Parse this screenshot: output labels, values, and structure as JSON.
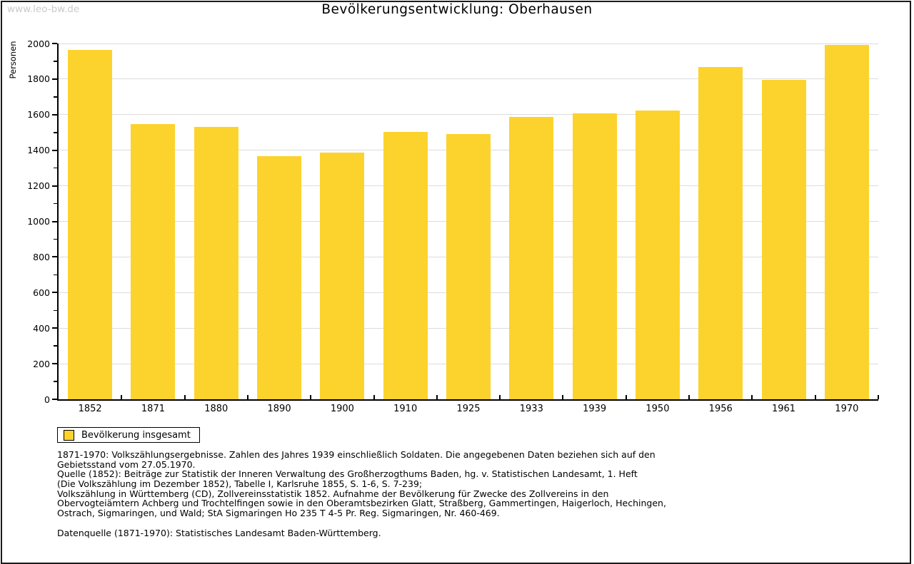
{
  "page": {
    "watermark": "www.leo-bw.de",
    "title": "Bevölkerungsentwicklung: Oberhausen"
  },
  "chart_data": {
    "type": "bar",
    "title": "Bevölkerungsentwicklung: Oberhausen",
    "xlabel": "",
    "ylabel": "Personen",
    "categories": [
      "1852",
      "1871",
      "1880",
      "1890",
      "1900",
      "1910",
      "1925",
      "1933",
      "1939",
      "1950",
      "1956",
      "1961",
      "1970"
    ],
    "series": [
      {
        "name": "Bevölkerung insgesamt",
        "values": [
          1962,
          1548,
          1530,
          1367,
          1387,
          1502,
          1489,
          1586,
          1606,
          1623,
          1868,
          1794,
          1993
        ]
      }
    ],
    "ylim": [
      0,
      2000
    ],
    "y_major_step": 200,
    "y_minor_step": 100,
    "grid": true,
    "legend_position": "bottom-left"
  },
  "legend": {
    "label": "Bevölkerung insgesamt"
  },
  "footer": {
    "notes": [
      "1871-1970: Volkszählungsergebnisse. Zahlen des Jahres 1939 einschließlich Soldaten. Die angegebenen Daten beziehen sich auf den",
      "Gebietsstand vom 27.05.1970.",
      "Quelle (1852): Beiträge zur Statistik der Inneren Verwaltung des Großherzogthums Baden, hg. v. Statistischen Landesamt, 1. Heft",
      "(Die Volkszählung im Dezember 1852), Tabelle I, Karlsruhe 1855, S. 1-6, S. 7-239;",
      "Volkszählung in Württemberg (CD), Zollvereinsstatistik 1852. Aufnahme der Bevölkerung für Zwecke des Zollvereins in den",
      "Obervogteiämtern Achberg und Trochtelfingen sowie in den Oberamtsbezirken Glatt, Straßberg, Gammertingen, Haigerloch, Hechingen,",
      "Ostrach, Sigmaringen, und Wald; StA Sigmaringen Ho 235 T 4-5 Pr. Reg. Sigmaringen, Nr. 460-469."
    ],
    "source": "Datenquelle (1871-1970): Statistisches Landesamt Baden-Württemberg."
  },
  "colors": {
    "bar": "#FCD32D",
    "grid": "#DCDCDC",
    "axis": "#000000",
    "watermark": "#C9C9C9",
    "border": "#1B1B1B"
  }
}
